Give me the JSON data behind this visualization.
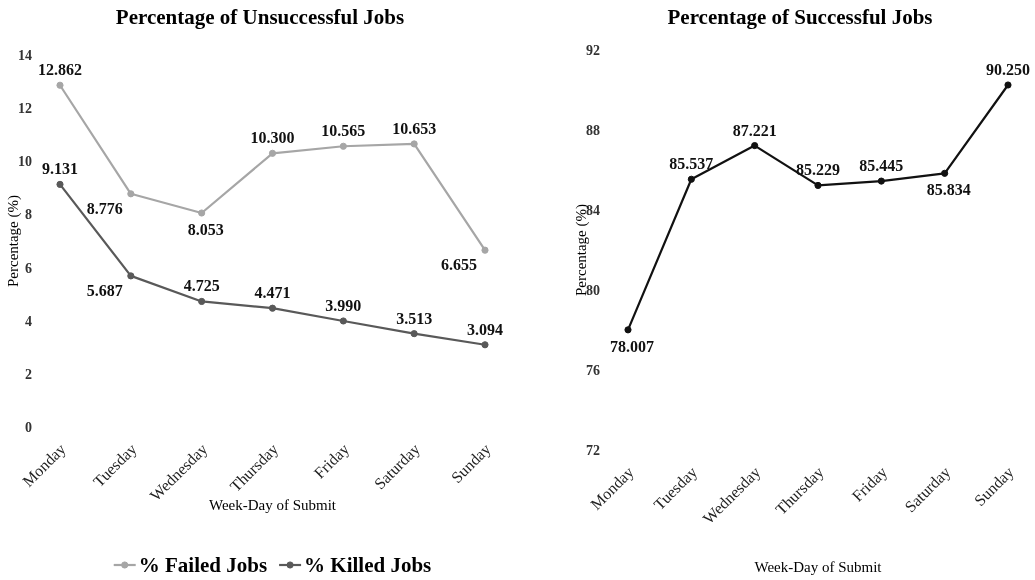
{
  "chart_data": [
    {
      "type": "line",
      "title": "Percentage of Unsuccessful Jobs",
      "xlabel": "Week-Day of Submit",
      "ylabel": "Percentage (%)",
      "categories": [
        "Monday",
        "Tuesday",
        "Wednesday",
        "Thursday",
        "Friday",
        "Saturday",
        "Sunday"
      ],
      "series": [
        {
          "name": "% Failed Jobs",
          "color": "#a6a6a6",
          "values": [
            12.862,
            8.776,
            8.053,
            10.3,
            10.565,
            10.653,
            6.655
          ],
          "value_labels": [
            "12.862",
            "8.776",
            "8.053",
            "10.300",
            "10.565",
            "10.653",
            "6.655"
          ]
        },
        {
          "name": "% Killed Jobs",
          "color": "#595959",
          "values": [
            9.131,
            5.687,
            4.725,
            4.471,
            3.99,
            3.513,
            3.094
          ],
          "value_labels": [
            "9.131",
            "5.687",
            "4.725",
            "4.471",
            "3.990",
            "3.513",
            "3.094"
          ]
        }
      ],
      "ylim": [
        0,
        14
      ],
      "yticks": [
        0,
        2,
        4,
        6,
        8,
        10,
        12,
        14
      ],
      "grid": false,
      "legend": "bottom",
      "marker": "circle",
      "line_style": "solid"
    },
    {
      "type": "line",
      "title": "Percentage of Successful Jobs",
      "xlabel": "Week-Day of Submit",
      "ylabel": "Percentage (%)",
      "categories": [
        "Monday",
        "Tuesday",
        "Wednesday",
        "Thursday",
        "Friday",
        "Saturday",
        "Sunday"
      ],
      "series": [
        {
          "color": "#111111",
          "values": [
            78.007,
            85.537,
            87.221,
            85.229,
            85.445,
            85.834,
            90.25
          ],
          "value_labels": [
            "78.007",
            "85.537",
            "87.221",
            "85.229",
            "85.445",
            "85.834",
            "90.250"
          ]
        }
      ],
      "ylim": [
        72,
        92
      ],
      "yticks": [
        72,
        76,
        80,
        84,
        88,
        92
      ],
      "grid": false,
      "legend": false,
      "marker": "circle",
      "line_style": "solid"
    }
  ]
}
